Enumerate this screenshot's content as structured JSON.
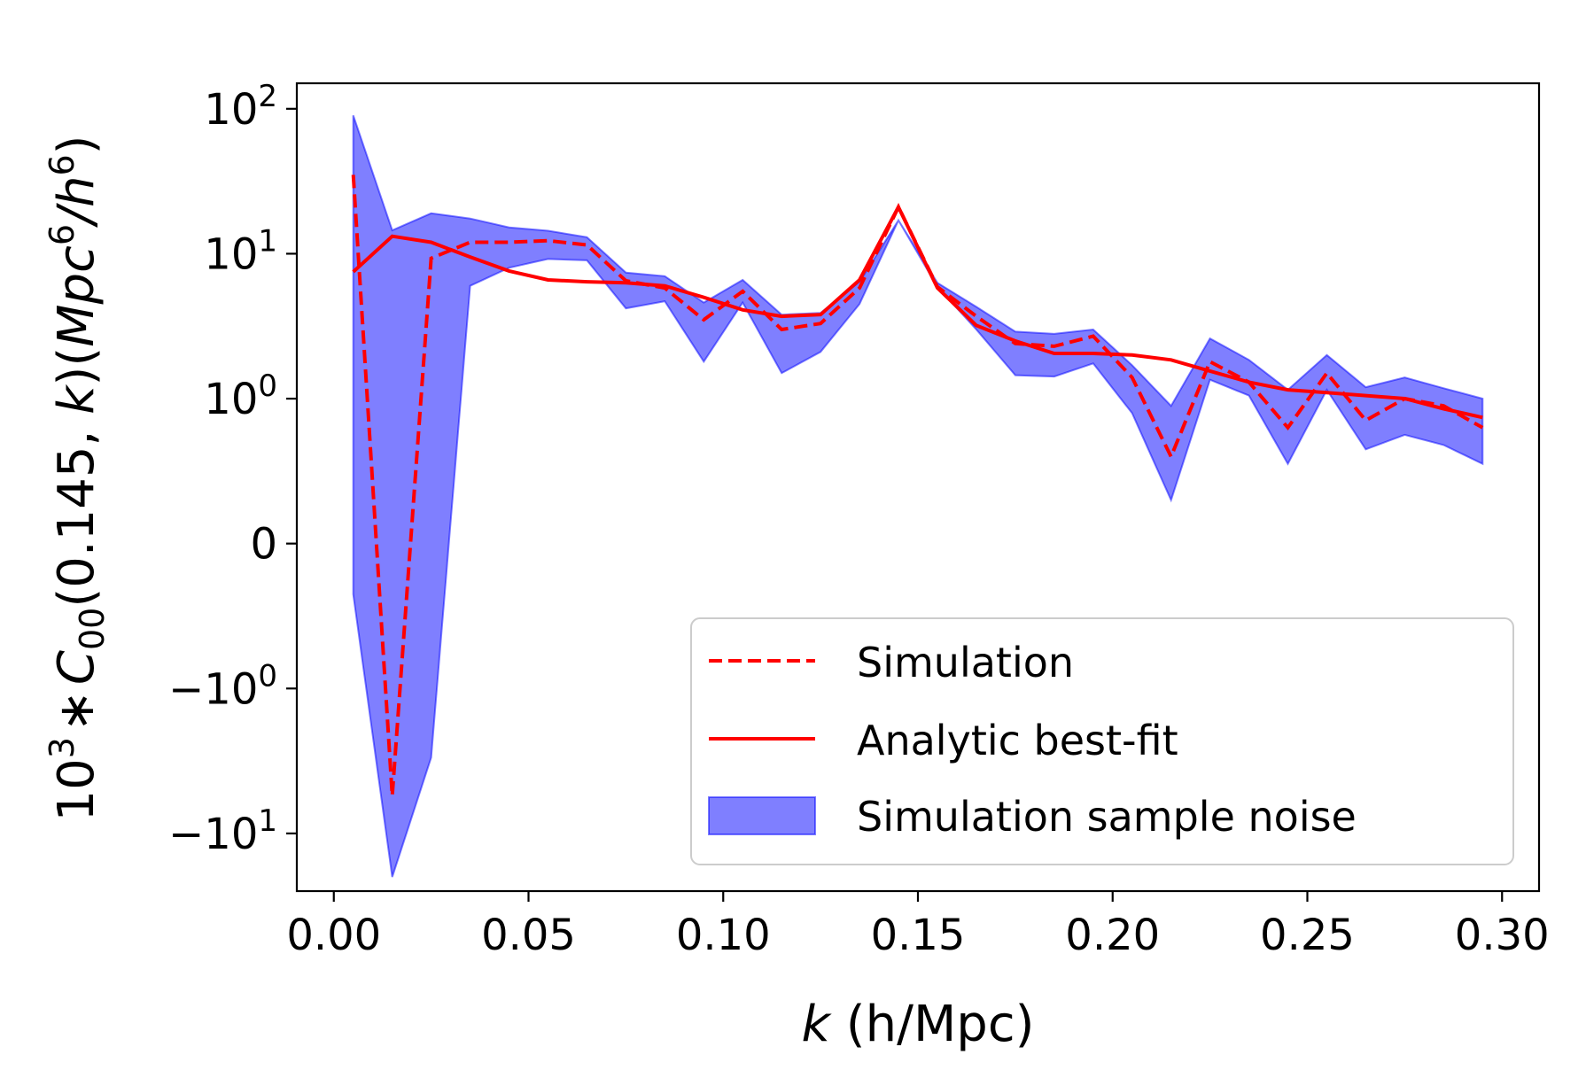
{
  "chart_data": {
    "type": "line",
    "title": "",
    "xlabel": "k (h/Mpc)",
    "ylabel": "10^3 * C00(0.145, k)(Mpc^6/h^6)",
    "xlim": [
      -0.0095,
      0.3095
    ],
    "xticks": [
      0.0,
      0.05,
      0.1,
      0.15,
      0.2,
      0.25,
      0.3
    ],
    "xtick_labels": [
      "0.00",
      "0.05",
      "0.10",
      "0.15",
      "0.20",
      "0.25",
      "0.30"
    ],
    "yscale": "symlog",
    "ylim": [
      -25,
      150
    ],
    "yticks": [
      100,
      10,
      1,
      0,
      -1,
      -10
    ],
    "ytick_labels": [
      {
        "base": "10",
        "sign": "",
        "exp": "2"
      },
      {
        "base": "10",
        "sign": "",
        "exp": "1"
      },
      {
        "base": "10",
        "sign": "",
        "exp": "0"
      },
      {
        "base": "0",
        "sign": "",
        "exp": ""
      },
      {
        "base": "10",
        "sign": "−",
        "exp": "0"
      },
      {
        "base": "10",
        "sign": "−",
        "exp": "1"
      }
    ],
    "axis_label_parts": {
      "x_italic": "k",
      "x_rest": " (h/Mpc)",
      "y_base": "10",
      "y_base_exp": "3",
      "y_star": "∗",
      "y_C": "C",
      "y_sub": "00",
      "y_args": "(0.145, ",
      "y_k": "k",
      "y_close": ")(",
      "y_Mpc": "Mpc",
      "y_exp1": "6",
      "y_slash": "/",
      "y_h": "h",
      "y_exp2": "6",
      "y_end": ")"
    },
    "x": [
      0.005,
      0.015,
      0.025,
      0.035,
      0.045,
      0.055,
      0.065,
      0.075,
      0.085,
      0.095,
      0.105,
      0.115,
      0.125,
      0.135,
      0.145,
      0.155,
      0.165,
      0.175,
      0.185,
      0.195,
      0.205,
      0.215,
      0.225,
      0.235,
      0.245,
      0.255,
      0.265,
      0.275,
      0.285,
      0.295
    ],
    "series": [
      {
        "name": "Simulation",
        "style": "dashed",
        "color": "#ff0000",
        "values": [
          35,
          -5.5,
          9.3,
          12.0,
          12.0,
          12.3,
          11.5,
          6.5,
          5.8,
          3.5,
          5.5,
          3.0,
          3.3,
          5.8,
          21,
          5.9,
          3.7,
          2.4,
          2.3,
          2.7,
          1.4,
          0.6,
          1.8,
          1.3,
          0.8,
          1.5,
          0.85,
          1.0,
          0.95,
          0.8
        ]
      },
      {
        "name": "Analytic best-fit",
        "style": "solid",
        "color": "#ff0000",
        "values": [
          7.5,
          13.2,
          12.0,
          9.5,
          7.6,
          6.6,
          6.4,
          6.3,
          6.0,
          5.0,
          4.1,
          3.7,
          3.8,
          6.6,
          21,
          5.8,
          3.2,
          2.5,
          2.05,
          2.05,
          2.0,
          1.85,
          1.55,
          1.3,
          1.15,
          1.1,
          1.05,
          1.0,
          0.93,
          0.87
        ]
      }
    ],
    "band": {
      "name": "Simulation sample noise",
      "color": "#0000ff",
      "alpha": 0.5,
      "upper": [
        90,
        14.5,
        19.0,
        17.5,
        15.2,
        14.4,
        13.0,
        7.4,
        7.0,
        4.6,
        6.6,
        3.8,
        3.9,
        6.4,
        17.0,
        6.3,
        4.3,
        2.9,
        2.8,
        3.0,
        1.7,
        0.95,
        2.6,
        1.85,
        1.15,
        2.0,
        1.2,
        1.4,
        1.18,
        1.0
      ],
      "lower": [
        -0.35,
        -20,
        -3.0,
        6.0,
        8.0,
        9.2,
        9.0,
        4.2,
        4.7,
        1.8,
        4.6,
        1.5,
        2.1,
        4.5,
        17.0,
        5.9,
        3.0,
        1.45,
        1.42,
        1.75,
        0.9,
        0.3,
        1.35,
        1.05,
        0.55,
        1.15,
        0.65,
        0.75,
        0.68,
        0.55
      ]
    },
    "legend": {
      "position": "lower-right",
      "entries": [
        "Simulation",
        "Analytic best-fit",
        "Simulation sample noise"
      ]
    },
    "grid": false
  }
}
